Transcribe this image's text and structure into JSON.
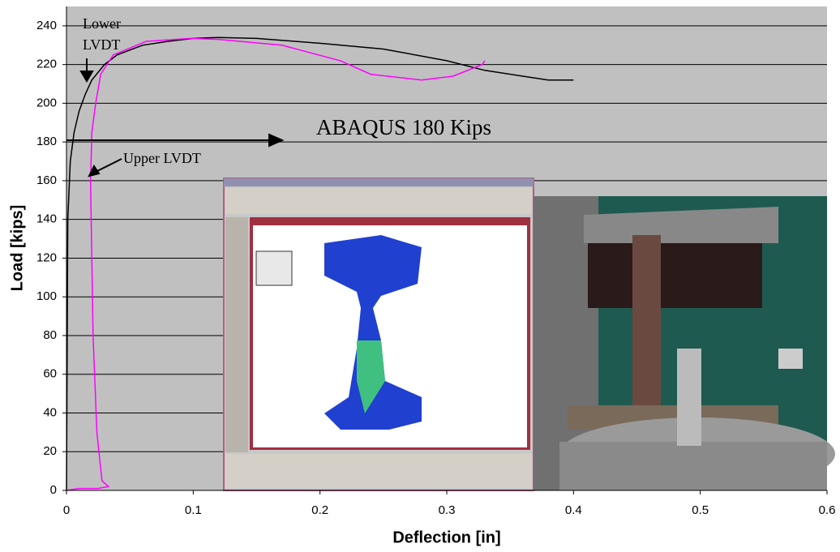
{
  "chart_data": {
    "type": "line",
    "xlabel": "Deflection [in]",
    "ylabel": "Load [kips]",
    "xlim": [
      0,
      0.6
    ],
    "xticks": [
      0,
      0.1,
      0.2,
      0.3,
      0.4,
      0.5,
      0.6
    ],
    "ylim": [
      0,
      250
    ],
    "yticks": [
      0,
      20,
      40,
      60,
      80,
      100,
      120,
      140,
      160,
      180,
      200,
      220,
      240
    ],
    "grid": true,
    "annotations": [
      "Lower LVDT",
      "Upper LVDT",
      "ABAQUS 180 Kips"
    ],
    "series": [
      {
        "color": "#000000",
        "x": [
          0,
          0.001,
          0.003,
          0.006,
          0.01,
          0.015,
          0.02,
          0.03,
          0.04,
          0.06,
          0.08,
          0.1,
          0.12,
          0.15,
          0.2,
          0.25,
          0.3,
          0.33,
          0.36,
          0.38,
          0.4
        ],
        "values": [
          0,
          140,
          170,
          185,
          196,
          205,
          212,
          220,
          225,
          230,
          232,
          233.5,
          234,
          233.5,
          231,
          228,
          222,
          217,
          214,
          212,
          212
        ]
      },
      {
        "color": "#ff00ff",
        "x": [
          0,
          0.01,
          0.025,
          0.033,
          0.028,
          0.024,
          0.021,
          0.019,
          0.02,
          0.023,
          0.027,
          0.037,
          0.063,
          0.098,
          0.12,
          0.17,
          0.216,
          0.24,
          0.28,
          0.305,
          0.328,
          0.33
        ],
        "values": [
          0,
          1,
          1,
          2,
          5,
          30,
          80,
          160,
          185,
          200,
          215,
          225,
          232,
          233.5,
          233,
          230,
          222,
          215,
          212,
          214,
          220,
          222
        ]
      }
    ]
  }
}
